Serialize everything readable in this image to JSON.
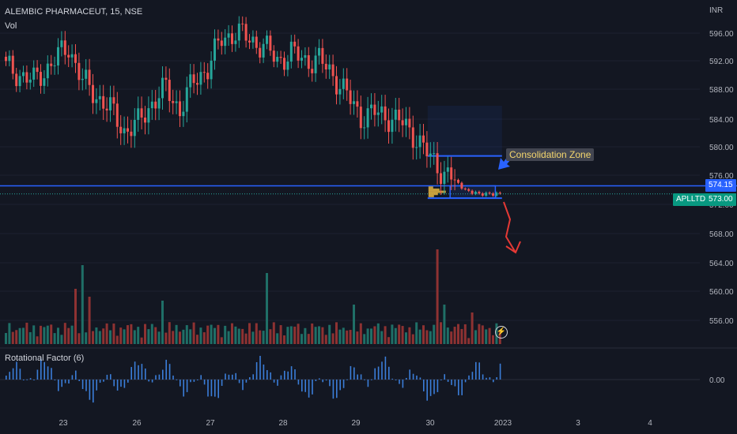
{
  "header": {
    "title": "ALEMBIC PHARMACEUT, 15, NSE",
    "volume_label": "Vol",
    "currency": "INR"
  },
  "indicator": {
    "label": "Rotational Factor (6)",
    "zero_label": "0.00"
  },
  "price_axis": {
    "ticks": [
      "596.00",
      "592.00",
      "588.00",
      "584.00",
      "580.00",
      "576.00",
      "572.00",
      "568.00",
      "564.00",
      "560.00",
      "556.00"
    ]
  },
  "time_axis": {
    "labels": [
      "23",
      "26",
      "27",
      "28",
      "29",
      "30",
      "2023",
      "3",
      "4"
    ]
  },
  "price_tags": {
    "line_price": "574.15",
    "last_price": "573.00",
    "symbol": "APLLTD"
  },
  "annotation": {
    "callout_text": "Consolidation Zone"
  },
  "colors": {
    "background": "#131722",
    "up": "#26a69a",
    "down": "#ef5350",
    "line_blue": "#2962ff",
    "arrow": "#e53935",
    "callout_text": "#f5d76e"
  },
  "chart_data": {
    "type": "candlestick",
    "ylim": [
      553,
      599
    ],
    "levels": {
      "horizontal_line": 574.15,
      "last_price": 573.0
    },
    "zone": {
      "high": 574.15,
      "low": 572.4
    },
    "range_box": {
      "high": 578.4,
      "low": 572.4
    },
    "anchors": [
      [
        0,
        591
      ],
      [
        8,
        589
      ],
      [
        14,
        592
      ],
      [
        18,
        594
      ],
      [
        22,
        589
      ],
      [
        26,
        587
      ],
      [
        30,
        585
      ],
      [
        34,
        582
      ],
      [
        38,
        583
      ],
      [
        42,
        586
      ],
      [
        46,
        588
      ],
      [
        50,
        585
      ],
      [
        54,
        589
      ],
      [
        58,
        591
      ],
      [
        62,
        595
      ],
      [
        66,
        596
      ],
      [
        70,
        595
      ],
      [
        74,
        594
      ],
      [
        78,
        592
      ],
      [
        82,
        593
      ],
      [
        86,
        592
      ],
      [
        90,
        592
      ],
      [
        94,
        590
      ],
      [
        98,
        587
      ],
      [
        102,
        584
      ],
      [
        106,
        584.5
      ],
      [
        110,
        584
      ],
      [
        114,
        583
      ],
      [
        118,
        581
      ],
      [
        122,
        578
      ],
      [
        126,
        576
      ],
      [
        130,
        574.5
      ],
      [
        132,
        573.5
      ],
      [
        136,
        573
      ],
      [
        140,
        573
      ],
      [
        142,
        573
      ]
    ],
    "vol_spikes": [
      {
        "i": 20,
        "v": 70
      },
      {
        "i": 22,
        "v": 100
      },
      {
        "i": 24,
        "v": 60
      },
      {
        "i": 45,
        "v": 55
      },
      {
        "i": 75,
        "v": 90
      },
      {
        "i": 100,
        "v": 50
      },
      {
        "i": 124,
        "v": 120
      },
      {
        "i": 126,
        "v": 50
      },
      {
        "i": 134,
        "v": 40
      }
    ]
  }
}
